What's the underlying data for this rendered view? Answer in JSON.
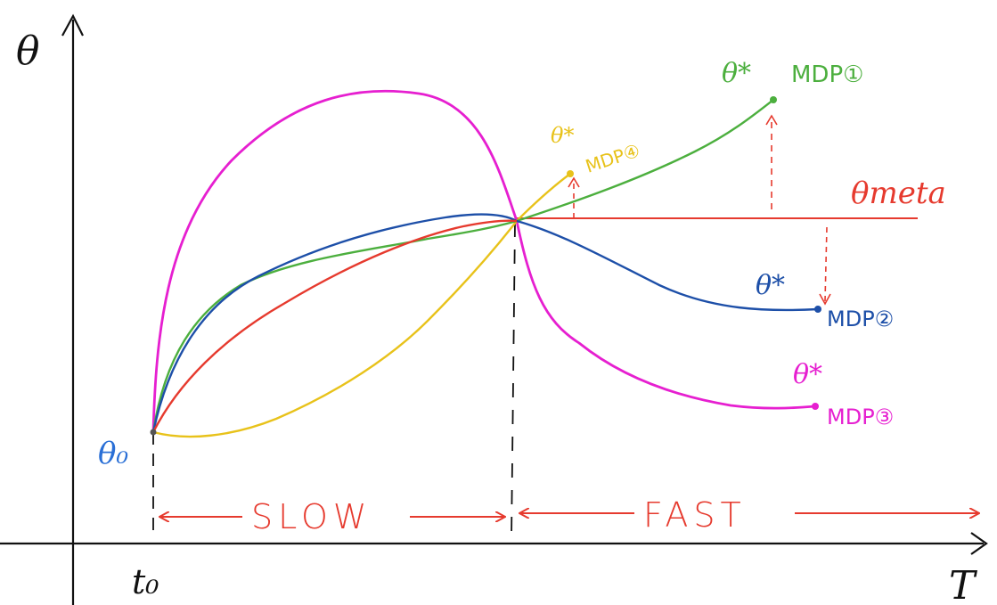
{
  "axes": {
    "y_label": "θ",
    "x_label": "T",
    "start_label": "t₀",
    "color": "#111111"
  },
  "start_point": {
    "label": "θ₀",
    "color": "#2a6fd6"
  },
  "meta": {
    "label": "θmeta",
    "color": "#e63a2e"
  },
  "regions": {
    "slow": {
      "label": "SLOW",
      "color": "#e63a2e"
    },
    "fast": {
      "label": "FAST",
      "color": "#e63a2e"
    }
  },
  "curves": [
    {
      "id": "mdp1",
      "endpoint_label": "θ*",
      "mdp_label": "MDP①",
      "color": "#4caf3e"
    },
    {
      "id": "mdp2",
      "endpoint_label": "θ*",
      "mdp_label": "MDP②",
      "color": "#1d4fa8"
    },
    {
      "id": "mdp3",
      "endpoint_label": "θ*",
      "mdp_label": "MDP③",
      "color": "#e61fd0"
    },
    {
      "id": "mdp4",
      "endpoint_label": "θ*",
      "mdp_label": "MDP④",
      "color": "#e8c21a"
    }
  ]
}
